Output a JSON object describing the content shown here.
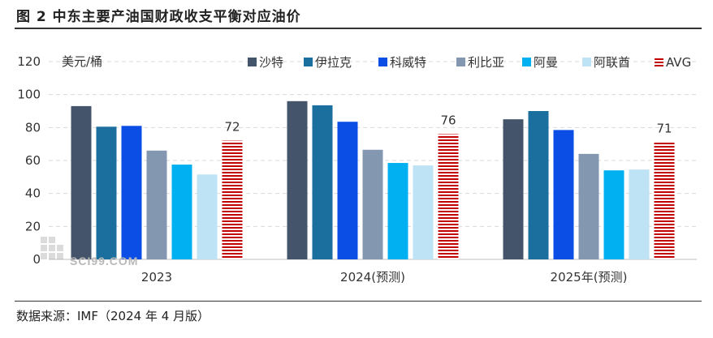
{
  "header": {
    "title": "图 2  中东主要产油国财政收支平衡对应油价"
  },
  "footer": {
    "source": "数据来源：IMF（2024 年 4 月版）"
  },
  "watermark": {
    "text": "SCI99.COM"
  },
  "chart_data": {
    "type": "bar",
    "title": "中东主要产油国财政收支平衡对应油价",
    "ylabel": "美元/桶",
    "xlabel": "",
    "ylim": [
      0,
      120
    ],
    "yticks": [
      0,
      20,
      40,
      60,
      80,
      100,
      120
    ],
    "grid": true,
    "legend_position": "top",
    "categories": [
      "2023",
      "2024(预测)",
      "2025年(预测)"
    ],
    "series": [
      {
        "name": "沙特",
        "values": [
          93,
          96,
          85
        ],
        "color": "#44546a"
      },
      {
        "name": "伊拉克",
        "values": [
          80.5,
          93.5,
          90
        ],
        "color": "#1a6f9f"
      },
      {
        "name": "科威特",
        "values": [
          81,
          83.5,
          78.5
        ],
        "color": "#0b4ee6"
      },
      {
        "name": "利比亚",
        "values": [
          66,
          66.5,
          64
        ],
        "color": "#8497b0"
      },
      {
        "name": "阿曼",
        "values": [
          57.5,
          58.5,
          54
        ],
        "color": "#00b0f0"
      },
      {
        "name": "阿联酋",
        "values": [
          51.5,
          57,
          54.5
        ],
        "color": "#bde3f5"
      },
      {
        "name": "AVG",
        "values": [
          72,
          76,
          71
        ],
        "color": "#c00000",
        "pattern": "horizontal-stripes"
      }
    ],
    "data_labels": [
      {
        "series": "AVG",
        "category": "2023",
        "text": "72"
      },
      {
        "series": "AVG",
        "category": "2024(预测)",
        "text": "76"
      },
      {
        "series": "AVG",
        "category": "2025年(预测)",
        "text": "71"
      }
    ]
  }
}
